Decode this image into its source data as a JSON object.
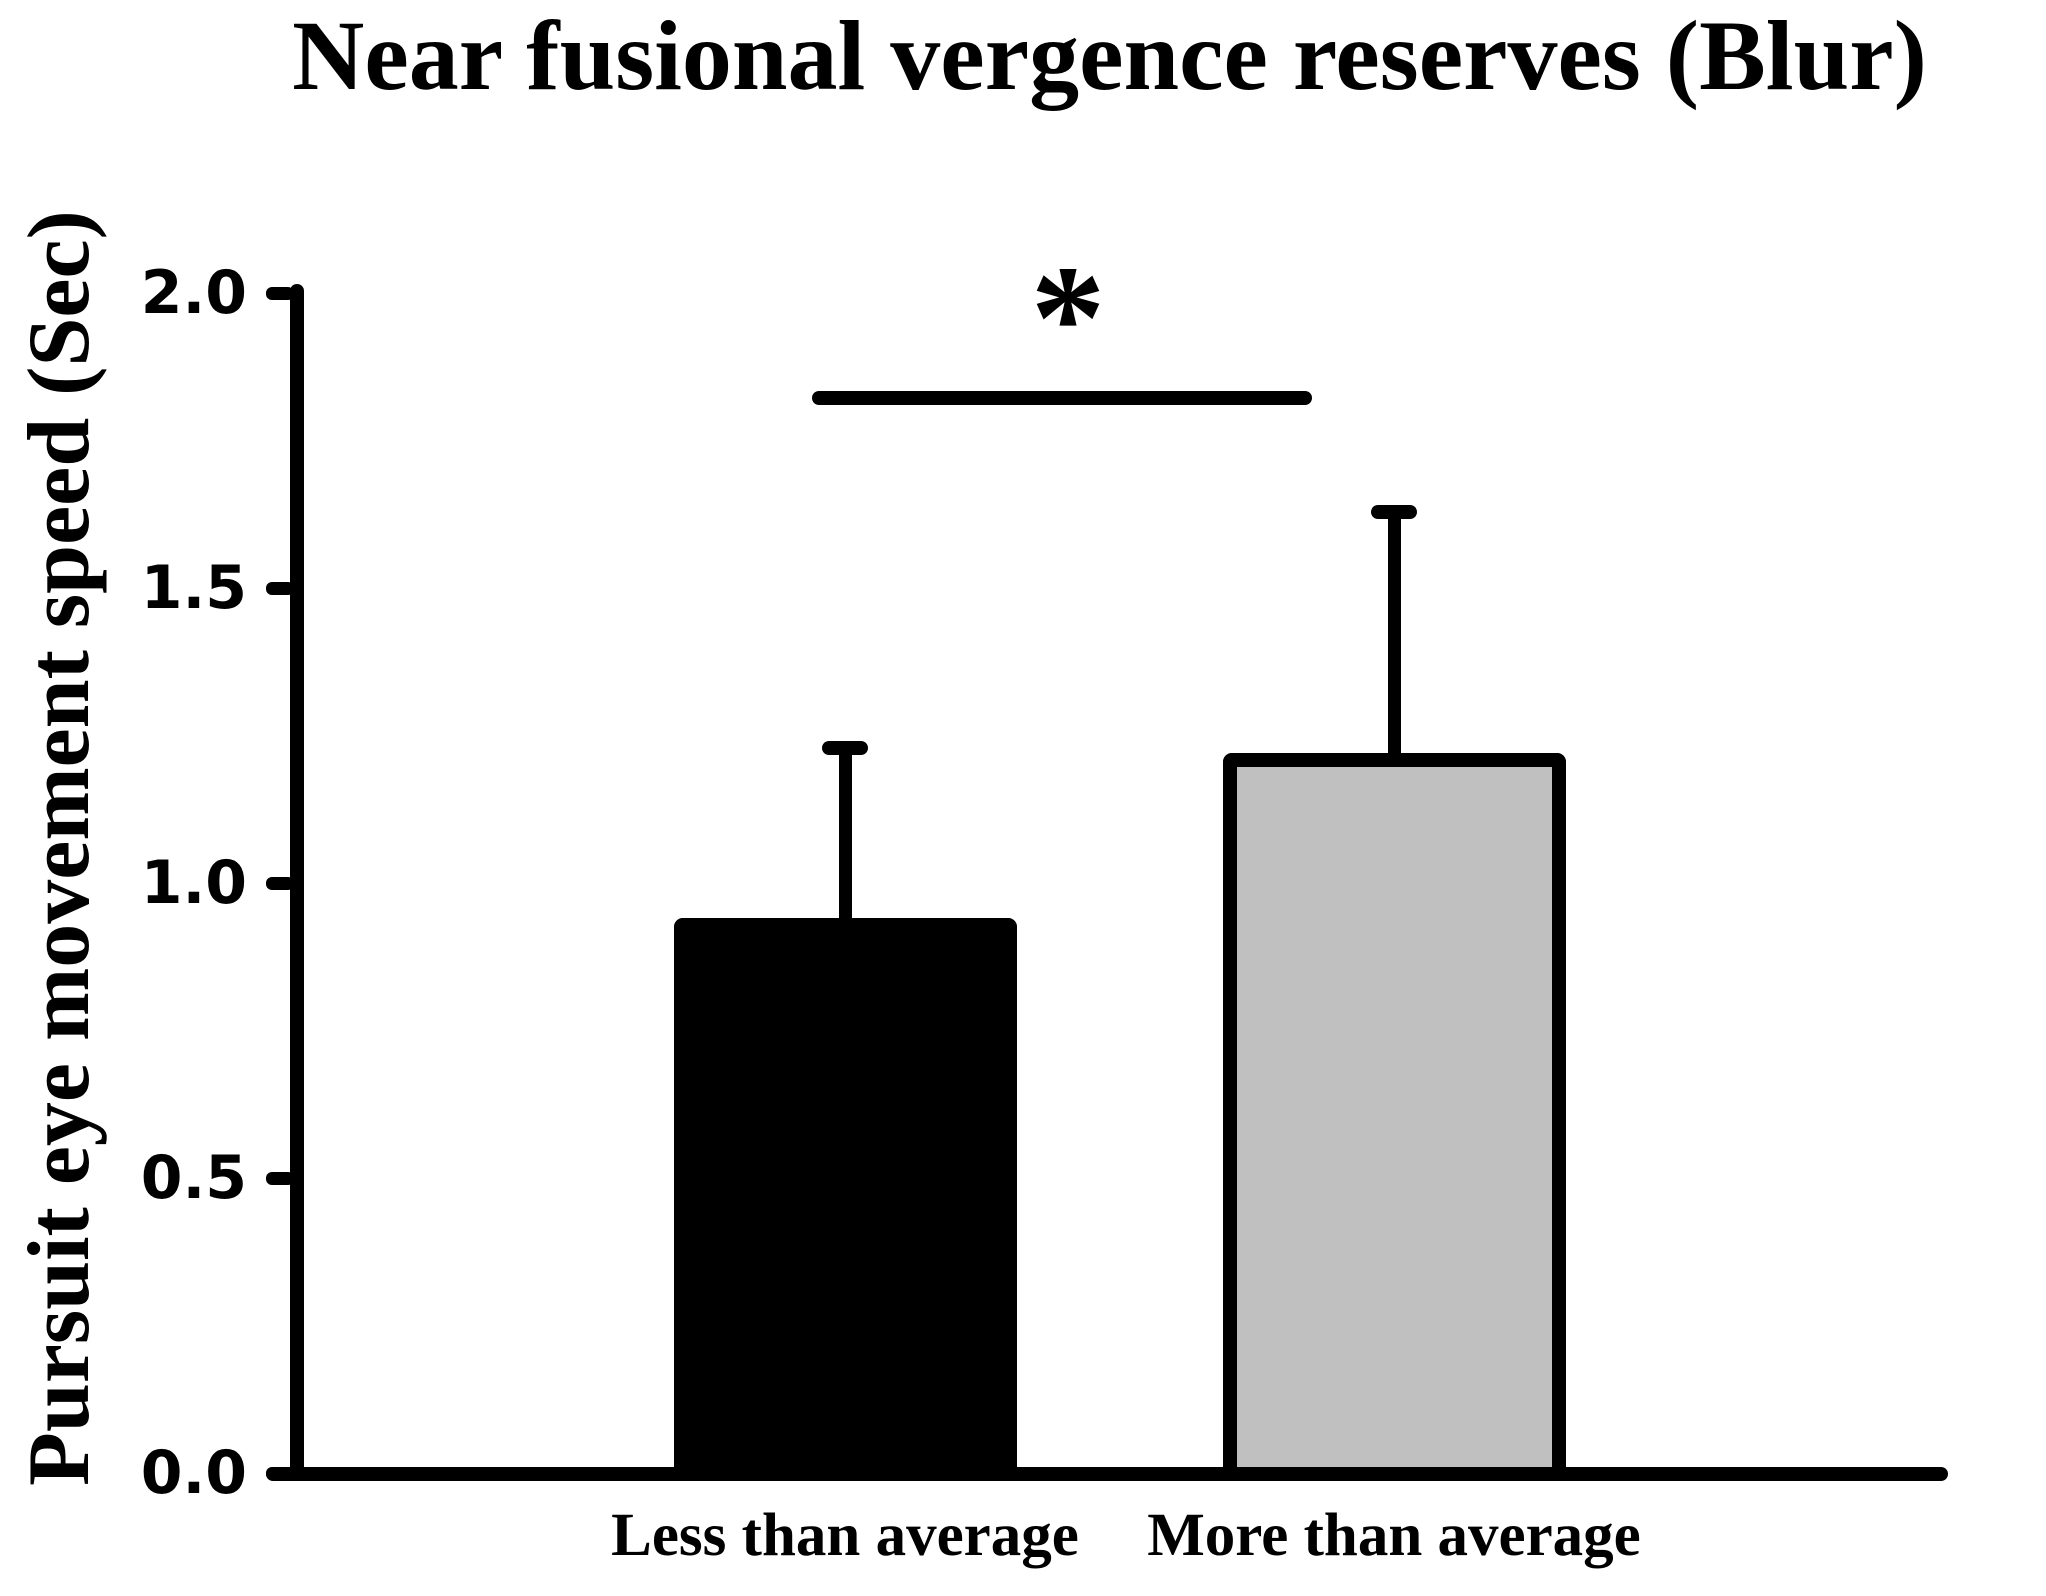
{
  "chart_data": {
    "type": "bar",
    "title": "Near fusional vergence reserves (Blur)",
    "ylabel": "Pursuit eye movement speed (Sec)",
    "xlabel": "",
    "categories": [
      "Less than average",
      "More than average"
    ],
    "values": [
      0.94,
      1.22
    ],
    "error_up": [
      0.3,
      0.42
    ],
    "bar_colors": [
      "#000000",
      "#C0C0C0"
    ],
    "bar_border_color": "#000000",
    "ylim": [
      0.0,
      2.0
    ],
    "yticks": [
      0.0,
      0.5,
      1.0,
      1.5,
      2.0
    ],
    "ytick_labels": [
      "0.0",
      "0.5",
      "1.0",
      "1.5",
      "2.0"
    ],
    "grid": false,
    "legend": false,
    "significance": {
      "label": "*",
      "between": [
        "Less than average",
        "More than average"
      ]
    }
  }
}
